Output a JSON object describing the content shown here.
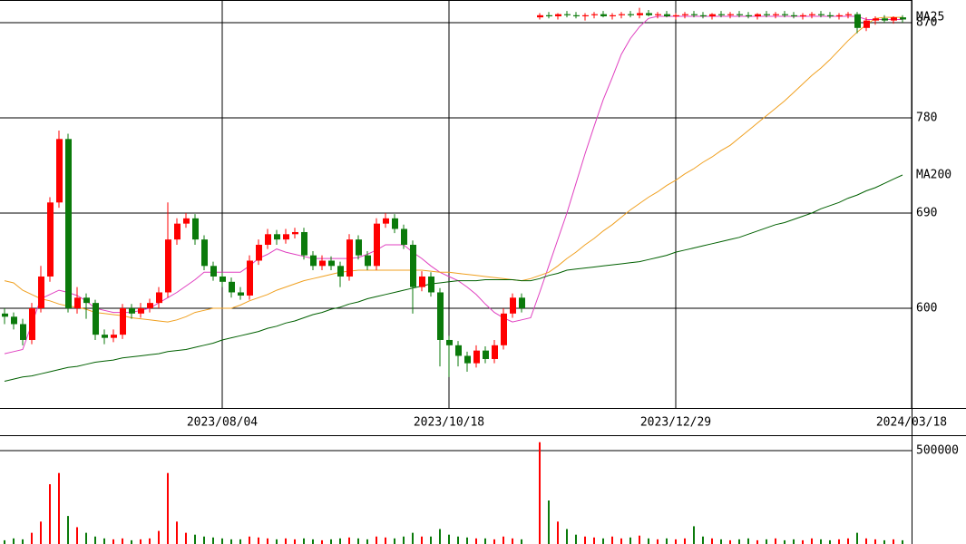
{
  "chart_data": [
    {
      "type": "candlestick",
      "categories": [
        null,
        null,
        null,
        null,
        null,
        null,
        null,
        null,
        null,
        null,
        null,
        null,
        null,
        null,
        null,
        null,
        null,
        null,
        null,
        null,
        null,
        null,
        null,
        null,
        "2023/08/04",
        null,
        null,
        null,
        null,
        null,
        null,
        null,
        null,
        null,
        null,
        null,
        null,
        null,
        null,
        null,
        null,
        null,
        null,
        null,
        null,
        null,
        null,
        null,
        null,
        "2023/10/18",
        null,
        null,
        null,
        null,
        null,
        null,
        null,
        null,
        null,
        null,
        null,
        null,
        null,
        null,
        null,
        null,
        null,
        null,
        null,
        null,
        null,
        null,
        null,
        null,
        "2023/12/29",
        null,
        null,
        null,
        null,
        null,
        null,
        null,
        null,
        null,
        null,
        null,
        null,
        null,
        null,
        null,
        null,
        null,
        null,
        null,
        null,
        null,
        null,
        null,
        null,
        null,
        "2024/03/18"
      ],
      "open": [
        595,
        592,
        585,
        570,
        600,
        630,
        700,
        760,
        600,
        610,
        605,
        575,
        572,
        575,
        600,
        595,
        600,
        605,
        615,
        665,
        680,
        685,
        665,
        640,
        630,
        625,
        615,
        612,
        645,
        660,
        670,
        665,
        670,
        672,
        650,
        640,
        645,
        640,
        630,
        665,
        650,
        640,
        680,
        685,
        675,
        660,
        620,
        630,
        615,
        570,
        565,
        555,
        548,
        560,
        552,
        565,
        595,
        610,
        null,
        875,
        877,
        876,
        878,
        877,
        876,
        877,
        878,
        876,
        877,
        878,
        877,
        879,
        877,
        878,
        876,
        877,
        878,
        877,
        876,
        878,
        877,
        878,
        877,
        876,
        878,
        877,
        878,
        877,
        876,
        877,
        878,
        877,
        876,
        877,
        878,
        865,
        872,
        874,
        872,
        875,
        null
      ],
      "high": [
        600,
        596,
        590,
        605,
        640,
        705,
        768,
        765,
        620,
        614,
        608,
        580,
        580,
        604,
        604,
        605,
        609,
        620,
        700,
        685,
        690,
        689,
        669,
        644,
        634,
        629,
        620,
        650,
        665,
        675,
        674,
        675,
        676,
        676,
        654,
        650,
        649,
        644,
        670,
        669,
        654,
        685,
        690,
        689,
        679,
        664,
        635,
        634,
        619,
        574,
        569,
        559,
        565,
        564,
        570,
        600,
        614,
        614,
        null,
        879,
        880,
        879,
        881,
        880,
        879,
        880,
        881,
        879,
        880,
        881,
        884,
        882,
        880,
        881,
        879,
        880,
        881,
        880,
        879,
        881,
        880,
        881,
        880,
        879,
        881,
        880,
        881,
        880,
        879,
        880,
        881,
        880,
        879,
        880,
        880,
        875,
        876,
        877,
        876,
        877,
        null
      ],
      "low": [
        585,
        580,
        565,
        566,
        596,
        625,
        695,
        596,
        595,
        590,
        570,
        566,
        568,
        571,
        590,
        591,
        596,
        600,
        610,
        660,
        676,
        660,
        636,
        626,
        620,
        610,
        608,
        608,
        641,
        656,
        660,
        661,
        666,
        646,
        636,
        636,
        636,
        620,
        626,
        646,
        636,
        636,
        676,
        671,
        656,
        595,
        616,
        611,
        545,
        535,
        545,
        540,
        544,
        548,
        548,
        561,
        591,
        596,
        null,
        873,
        874,
        873,
        875,
        874,
        872,
        874,
        875,
        873,
        874,
        875,
        874,
        876,
        874,
        875,
        873,
        874,
        875,
        874,
        873,
        875,
        874,
        875,
        874,
        873,
        875,
        874,
        875,
        874,
        873,
        874,
        875,
        874,
        873,
        874,
        860,
        862,
        868,
        870,
        869,
        870,
        null
      ],
      "close": [
        592,
        585,
        570,
        600,
        630,
        700,
        760,
        600,
        610,
        605,
        575,
        572,
        575,
        600,
        595,
        600,
        605,
        615,
        665,
        680,
        685,
        665,
        640,
        630,
        625,
        615,
        612,
        645,
        660,
        670,
        665,
        670,
        672,
        650,
        640,
        645,
        640,
        630,
        665,
        650,
        640,
        680,
        685,
        675,
        660,
        620,
        630,
        615,
        570,
        565,
        555,
        548,
        560,
        552,
        565,
        595,
        610,
        600,
        null,
        877,
        876,
        878,
        877,
        876,
        877,
        878,
        876,
        877,
        878,
        877,
        879,
        877,
        878,
        876,
        877,
        878,
        877,
        876,
        878,
        877,
        878,
        877,
        876,
        878,
        877,
        878,
        877,
        876,
        877,
        878,
        877,
        876,
        877,
        878,
        865,
        872,
        874,
        872,
        875,
        873,
        null
      ],
      "up_color": "#ff0000",
      "down_color": "#0b7a0b",
      "series": [
        {
          "color": "#e040c0",
          "values": [
            557,
            559,
            561,
            585,
            609,
            613,
            617,
            615,
            612,
            607,
            600,
            598,
            596,
            596,
            596,
            598,
            600,
            605,
            610,
            615,
            621,
            627,
            634,
            634,
            634,
            634,
            634,
            640,
            647,
            651,
            656,
            653,
            651,
            649,
            647,
            647,
            647,
            647,
            647,
            648,
            651,
            655,
            660,
            660,
            660,
            653,
            647,
            640,
            634,
            630,
            626,
            620,
            613,
            604,
            596,
            591,
            587,
            589,
            591,
            615,
            640,
            665,
            690,
            718,
            746,
            772,
            797,
            818,
            840,
            855,
            866,
            874,
            876,
            876,
            876,
            876,
            876,
            876,
            876,
            876,
            876,
            876,
            876,
            876,
            876,
            876,
            876,
            876,
            876,
            876,
            876,
            876,
            876,
            876,
            876,
            873,
            873,
            873,
            873,
            873,
            null
          ]
        },
        {
          "name": "MA25",
          "color": "#f0a020",
          "values": [
            626,
            624,
            617,
            613,
            609,
            607,
            604,
            602,
            601,
            599,
            596,
            595,
            594,
            593,
            591,
            590,
            589,
            588,
            587,
            589,
            592,
            596,
            598,
            600,
            600,
            600,
            603,
            607,
            610,
            613,
            617,
            620,
            623,
            626,
            628,
            630,
            632,
            634,
            635,
            636,
            636,
            636,
            636,
            636,
            636,
            636,
            636,
            635,
            634,
            634,
            633,
            632,
            631,
            630,
            629,
            628,
            627,
            626,
            628,
            631,
            634,
            640,
            647,
            653,
            660,
            666,
            673,
            679,
            686,
            693,
            699,
            705,
            710,
            716,
            721,
            727,
            732,
            738,
            743,
            749,
            754,
            761,
            768,
            775,
            782,
            789,
            796,
            804,
            812,
            820,
            827,
            835,
            844,
            853,
            861,
            868,
            874,
            875,
            875,
            875,
            null
          ]
        },
        {
          "name": "MA200",
          "color": "#006000",
          "values": [
            531,
            533,
            535,
            536,
            538,
            540,
            542,
            544,
            545,
            547,
            549,
            550,
            551,
            553,
            554,
            555,
            556,
            557,
            559,
            560,
            561,
            563,
            565,
            567,
            570,
            572,
            574,
            576,
            578,
            581,
            583,
            586,
            588,
            591,
            594,
            596,
            599,
            601,
            604,
            606,
            609,
            611,
            613,
            615,
            617,
            619,
            621,
            623,
            624,
            625,
            626,
            626,
            626,
            627,
            627,
            627,
            627,
            626,
            626,
            628,
            631,
            633,
            636,
            637,
            638,
            639,
            640,
            641,
            642,
            643,
            644,
            646,
            648,
            650,
            653,
            655,
            657,
            659,
            661,
            663,
            665,
            667,
            670,
            673,
            676,
            679,
            681,
            684,
            687,
            690,
            694,
            697,
            700,
            704,
            707,
            711,
            714,
            718,
            722,
            726,
            null
          ]
        }
      ],
      "ylim": [
        505.7,
        891.4
      ],
      "yticks": [
        600,
        690,
        780,
        870
      ],
      "grid": true
    },
    {
      "type": "bar",
      "values": [
        20000,
        30000,
        25000,
        60000,
        120000,
        320000,
        380000,
        150000,
        90000,
        60000,
        40000,
        30000,
        25000,
        30000,
        20000,
        25000,
        30000,
        70000,
        380000,
        120000,
        60000,
        50000,
        40000,
        35000,
        30000,
        25000,
        25000,
        40000,
        35000,
        30000,
        25000,
        30000,
        25000,
        30000,
        25000,
        20000,
        25000,
        30000,
        35000,
        30000,
        25000,
        40000,
        35000,
        30000,
        40000,
        60000,
        40000,
        40000,
        80000,
        50000,
        40000,
        35000,
        30000,
        30000,
        25000,
        40000,
        30000,
        25000,
        null,
        545000,
        233000,
        120000,
        80000,
        50000,
        40000,
        35000,
        30000,
        40000,
        30000,
        35000,
        45000,
        30000,
        25000,
        30000,
        25000,
        30000,
        95000,
        40000,
        30000,
        25000,
        20000,
        25000,
        30000,
        20000,
        25000,
        30000,
        20000,
        25000,
        20000,
        30000,
        25000,
        20000,
        25000,
        30000,
        60000,
        30000,
        25000,
        20000,
        25000,
        20000,
        null
      ],
      "ylim": [
        0,
        582500
      ],
      "yticks": [
        500000
      ],
      "grid": true
    }
  ]
}
